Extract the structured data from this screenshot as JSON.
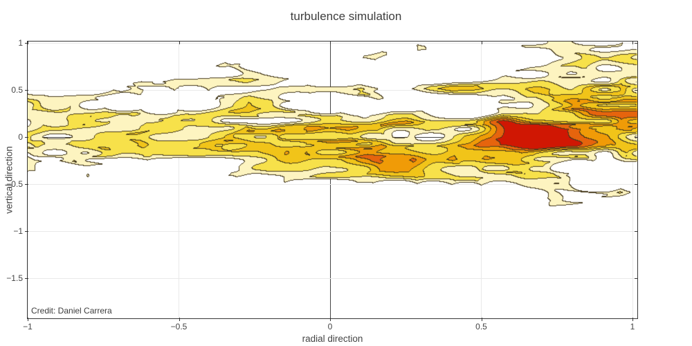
{
  "title": "turbulence simulation",
  "credit": "Credit: Daniel Carrera",
  "x_axis": {
    "label": "radial direction",
    "range": [
      -1,
      1.016
    ],
    "ticks": [
      {
        "v": -1,
        "label": "−1"
      },
      {
        "v": -0.5,
        "label": "−0.5"
      },
      {
        "v": 0,
        "label": "0"
      },
      {
        "v": 0.5,
        "label": "0.5"
      },
      {
        "v": 1,
        "label": "1"
      }
    ]
  },
  "y_axis": {
    "label": "vertical direction",
    "range": [
      -1.925,
      1.015
    ],
    "ticks": [
      {
        "v": 1,
        "label": "1"
      },
      {
        "v": 0.5,
        "label": "0.5"
      },
      {
        "v": 0,
        "label": "0"
      },
      {
        "v": -0.5,
        "label": "−0.5"
      },
      {
        "v": -1,
        "label": "−1"
      },
      {
        "v": -1.5,
        "label": "−1.5"
      }
    ]
  },
  "chart_data": {
    "type": "contour",
    "title": "turbulence simulation",
    "xlabel": "radial direction",
    "ylabel": "vertical direction",
    "xlim": [
      -1,
      1.016
    ],
    "ylim": [
      -1.925,
      1.015
    ],
    "grid": true,
    "legend": "none",
    "annotations": [
      {
        "text": "Credit: Daniel Carrera",
        "position": "bottom-left"
      }
    ],
    "style": {
      "background": "#ffffff",
      "axis_line_color": "#363636",
      "text_color": "#444444",
      "gridline_color": "#e9e9e9",
      "zeroline_color": "#444444",
      "contour_line_color": "#372a0a",
      "band_colors": [
        "#fdf4c0",
        "#f7e14a",
        "#f1c419",
        "#f09b07",
        "#e6640d",
        "#d01703"
      ]
    },
    "levels": [
      0.58,
      0.68,
      0.78,
      0.88,
      0.98,
      1.08
    ],
    "field_model": {
      "description": "filamentary ridged-noise turbulence field, band concentrated in y [-0.9, 1.0], intensity rising to the right with a hot red streak near (0.63, 0)",
      "octaves": [
        {
          "fx": 2.2,
          "fy": 3.0,
          "amp": 0.5,
          "seed": 11
        },
        {
          "fx": 4.4,
          "fy": 6.0,
          "amp": 0.3,
          "seed": 37
        },
        {
          "fx": 8.8,
          "fy": 12.0,
          "amp": 0.2,
          "seed": 71
        }
      ],
      "envelope": {
        "floor": 0.5,
        "amp": 0.6,
        "center": 0.05,
        "width": 0.85
      },
      "bottom_cutoff": {
        "from": -1.02,
        "to": -0.66
      },
      "trend": {
        "base": 0.88,
        "slope": 0.16
      },
      "hotspots": [
        {
          "x": 0.63,
          "y": -0.01,
          "sx": 0.3,
          "sy": 0.13,
          "amp": 0.65
        },
        {
          "x": 0.12,
          "y": -0.25,
          "sx": 0.35,
          "sy": 0.18,
          "amp": 0.18
        }
      ]
    }
  }
}
